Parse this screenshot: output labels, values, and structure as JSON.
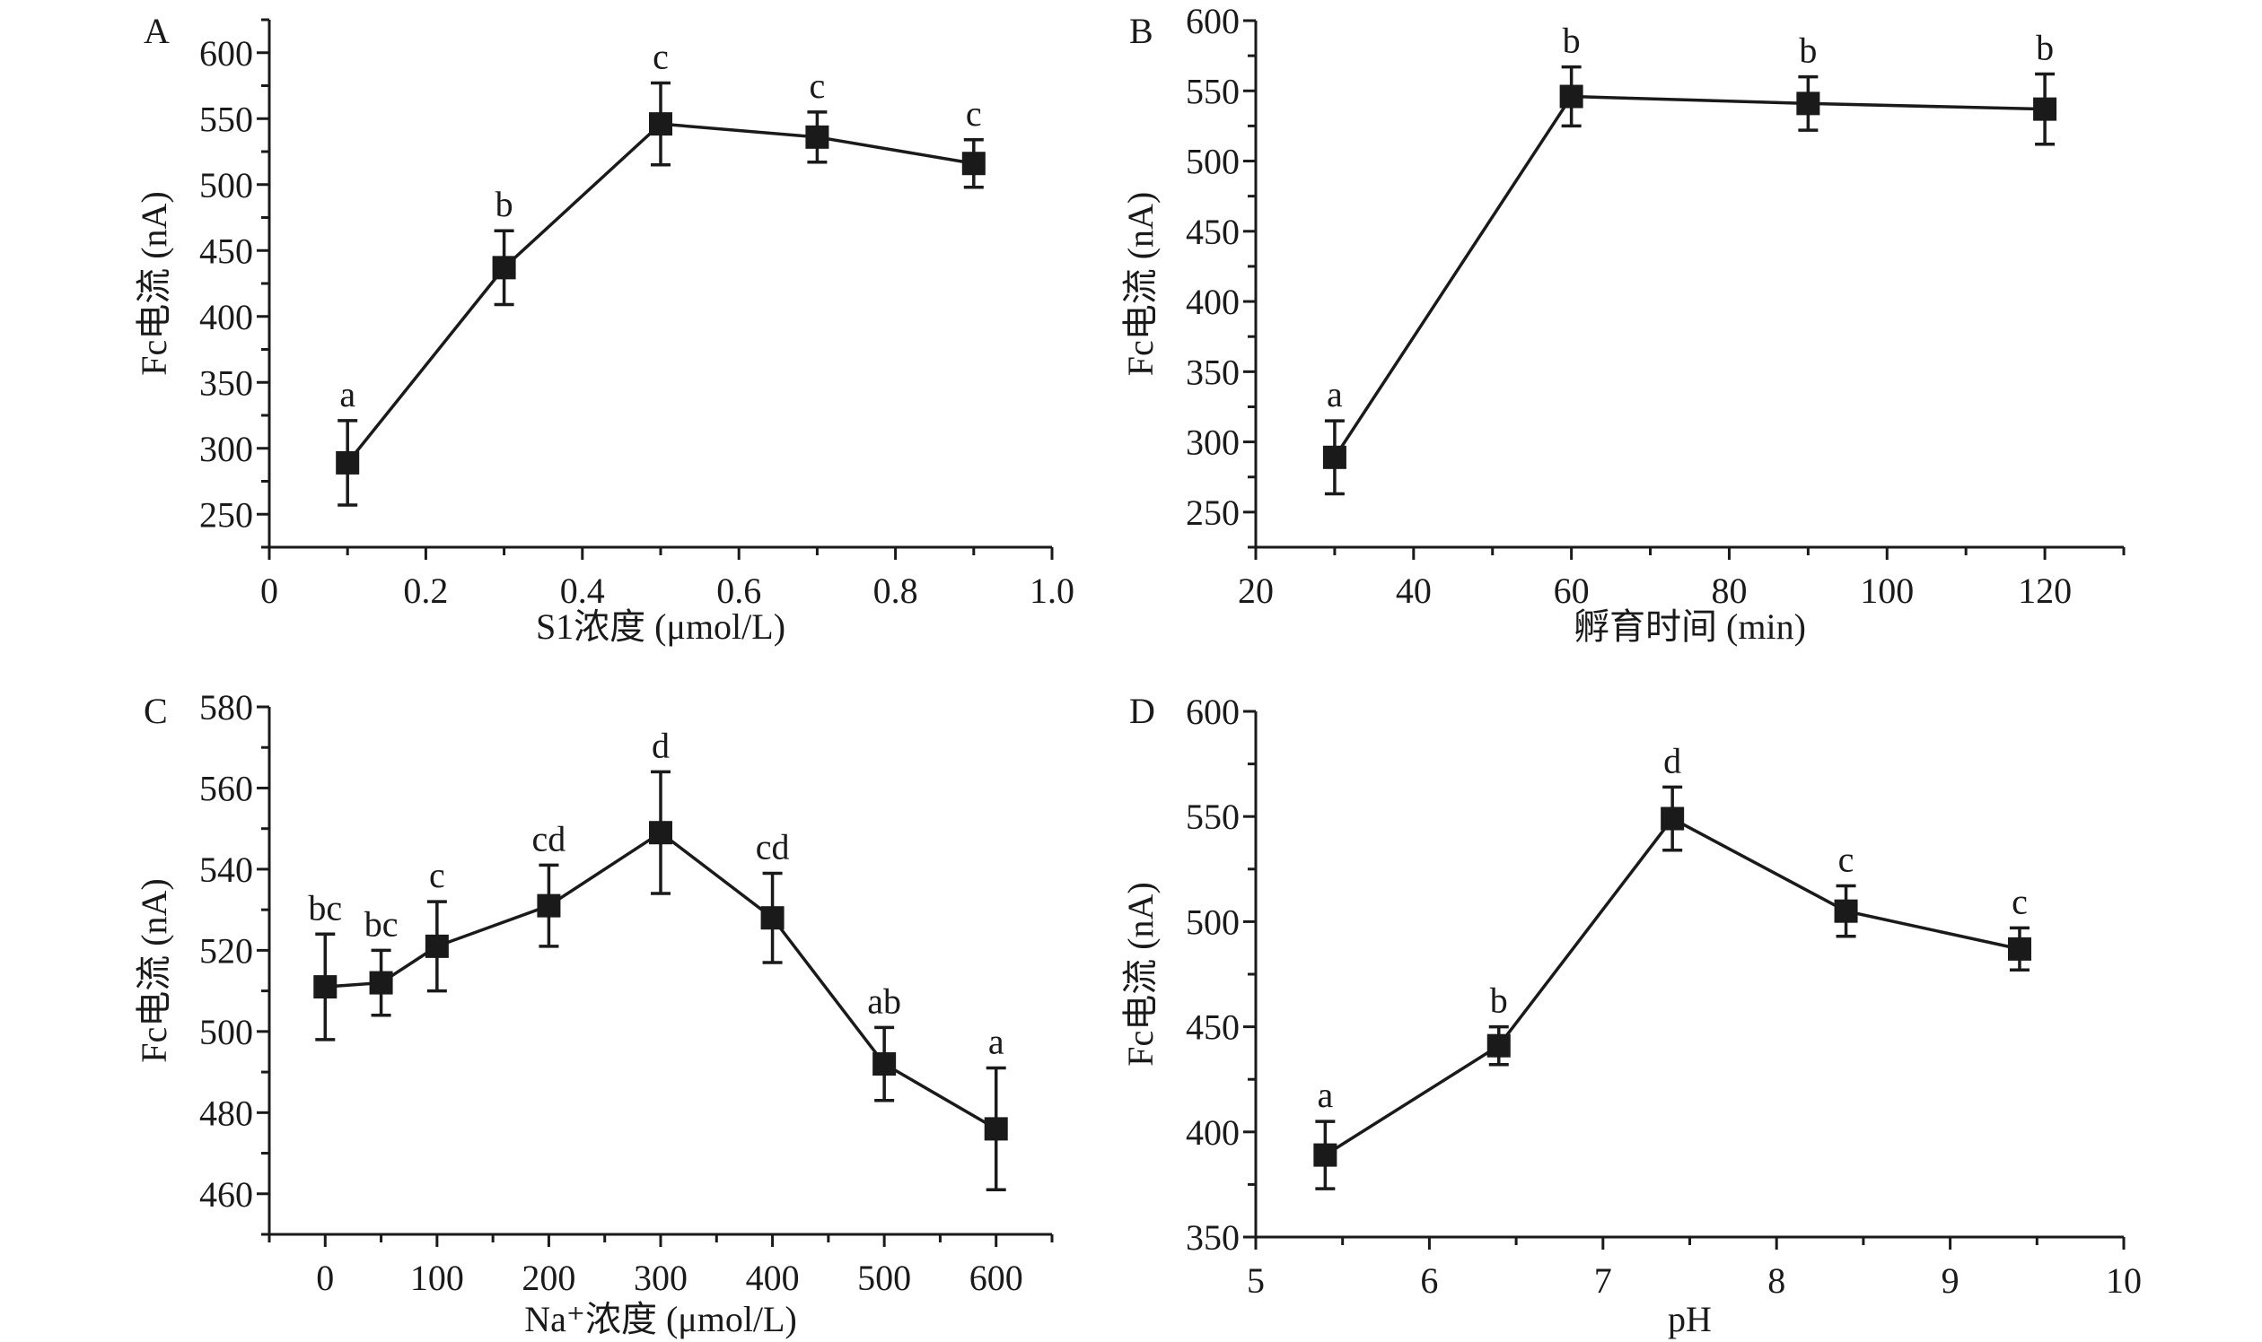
{
  "colors": {
    "series": "#1a1a1a",
    "axis": "#1a1a1a"
  },
  "chart_data": [
    {
      "panel": "A",
      "type": "line",
      "marker": "square",
      "xlabel": "S1浓度 (μmol/L)",
      "ylabel": "Fc电流 (nA)",
      "xlim": [
        0,
        1.0
      ],
      "ylim": [
        225,
        625
      ],
      "xticks": [
        0,
        0.2,
        0.4,
        0.6,
        0.8,
        1.0
      ],
      "xtick_labels": [
        "0",
        "0.2",
        "0.4",
        "0.6",
        "0.8",
        "1.0"
      ],
      "xminor": 0.1,
      "yticks": [
        250,
        300,
        350,
        400,
        450,
        500,
        550,
        600
      ],
      "yminor": 25,
      "x": [
        0.1,
        0.3,
        0.5,
        0.7,
        0.9
      ],
      "y": [
        289,
        437,
        546,
        536,
        516
      ],
      "yerr": [
        32,
        28,
        31,
        19,
        18
      ],
      "letters": [
        "a",
        "b",
        "c",
        "c",
        "c"
      ]
    },
    {
      "panel": "B",
      "type": "line",
      "marker": "square",
      "xlabel": "孵育时间 (min)",
      "ylabel": "Fc电流 (nA)",
      "xlim": [
        20,
        130
      ],
      "ylim": [
        225,
        600
      ],
      "xticks": [
        20,
        40,
        60,
        80,
        100,
        120
      ],
      "xtick_labels": [
        "20",
        "40",
        "60",
        "80",
        "100",
        "120"
      ],
      "xminor": 10,
      "yticks": [
        250,
        300,
        350,
        400,
        450,
        500,
        550,
        600
      ],
      "yminor": 25,
      "x": [
        30,
        60,
        90,
        120
      ],
      "y": [
        289,
        546,
        541,
        537
      ],
      "yerr": [
        26,
        21,
        19,
        25
      ],
      "letters": [
        "a",
        "b",
        "b",
        "b"
      ]
    },
    {
      "panel": "C",
      "type": "line",
      "marker": "square",
      "xlabel": "Na⁺浓度 (μmol/L)",
      "ylabel": "Fc电流 (nA)",
      "xlim": [
        -50,
        650
      ],
      "ylim": [
        450,
        580
      ],
      "xticks": [
        0,
        100,
        200,
        300,
        400,
        500,
        600
      ],
      "xtick_labels": [
        "0",
        "100",
        "200",
        "300",
        "400",
        "500",
        "600"
      ],
      "xminor": 50,
      "yticks": [
        460,
        480,
        500,
        520,
        540,
        560,
        580
      ],
      "yminor": 10,
      "x": [
        0,
        50,
        100,
        200,
        300,
        400,
        500,
        600
      ],
      "y": [
        511,
        512,
        521,
        531,
        549,
        528,
        492,
        476
      ],
      "yerr": [
        13,
        8,
        11,
        10,
        15,
        11,
        9,
        15
      ],
      "letters": [
        "bc",
        "bc",
        "c",
        "cd",
        "d",
        "cd",
        "ab",
        "a"
      ]
    },
    {
      "panel": "D",
      "type": "line",
      "marker": "square",
      "xlabel": "pH",
      "ylabel": "Fc电流 (nA)",
      "xlim": [
        5,
        10
      ],
      "ylim": [
        350,
        600
      ],
      "xticks": [
        5,
        6,
        7,
        8,
        9,
        10
      ],
      "xtick_labels": [
        "5",
        "6",
        "7",
        "8",
        "9",
        "10"
      ],
      "xminor": 0.5,
      "yticks": [
        350,
        400,
        450,
        500,
        550,
        600
      ],
      "yminor": 25,
      "x": [
        5.4,
        6.4,
        7.4,
        8.4,
        9.4
      ],
      "y": [
        389,
        441,
        549,
        505,
        487
      ],
      "yerr": [
        16,
        9,
        15,
        12,
        10
      ],
      "letters": [
        "a",
        "b",
        "d",
        "c",
        "c"
      ]
    }
  ]
}
